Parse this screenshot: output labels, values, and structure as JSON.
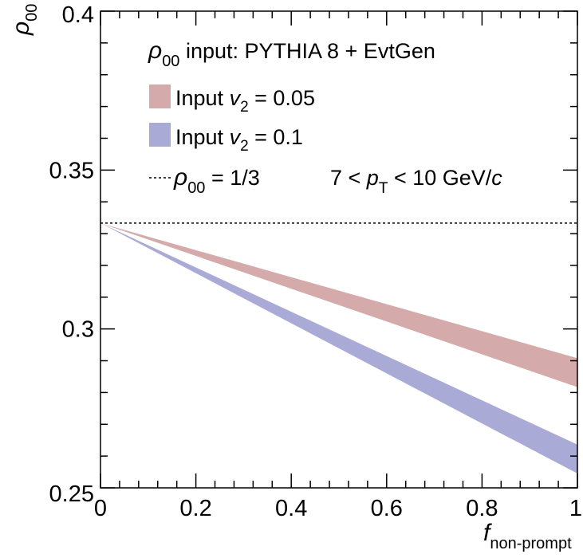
{
  "chart_data": {
    "type": "area",
    "xlim": [
      0,
      1
    ],
    "ylim": [
      0.25,
      0.4
    ],
    "x_ticks": [
      {
        "value": 0,
        "label": "0"
      },
      {
        "value": 0.2,
        "label": "0.2"
      },
      {
        "value": 0.4,
        "label": "0.4"
      },
      {
        "value": 0.6,
        "label": "0.6"
      },
      {
        "value": 0.8,
        "label": "0.8"
      },
      {
        "value": 1,
        "label": "1"
      }
    ],
    "y_ticks": [
      {
        "value": 0.25,
        "label": "0.25"
      },
      {
        "value": 0.3,
        "label": "0.3"
      },
      {
        "value": 0.35,
        "label": "0.35"
      },
      {
        "value": 0.4,
        "label": "0.4"
      }
    ],
    "xlabel": {
      "main": "f",
      "sub": "non-prompt"
    },
    "ylabel": {
      "main": "ρ",
      "sub": "00"
    },
    "legend": {
      "header": {
        "sym": "ρ",
        "sub": "00",
        "text": " input: PYTHIA 8 + EvtGen"
      },
      "placement": "top-left"
    },
    "series": [
      {
        "legend_pre": "Input ",
        "legend_var": "v",
        "legend_sub": "2",
        "legend_post": " = 0.05",
        "color": "#d4aaaa",
        "x": [
          0,
          1
        ],
        "y_low": [
          0.3333,
          0.2817
        ],
        "y_high": [
          0.3333,
          0.2908
        ]
      },
      {
        "legend_pre": "Input ",
        "legend_var": "v",
        "legend_sub": "2",
        "legend_post": " = 0.1",
        "color": "#aaaad6",
        "x": [
          0,
          1
        ],
        "y_low": [
          0.3333,
          0.2545
        ],
        "y_high": [
          0.3333,
          0.2636
        ]
      }
    ],
    "reference_line": {
      "y": 0.3333,
      "style": "dashed",
      "sym": "ρ",
      "sub": "00",
      "post": " = 1/3"
    },
    "annotation": {
      "pre": "7 < ",
      "var": "p",
      "sub": "T",
      "post": " < 10 GeV/",
      "post_ital": "c"
    }
  }
}
